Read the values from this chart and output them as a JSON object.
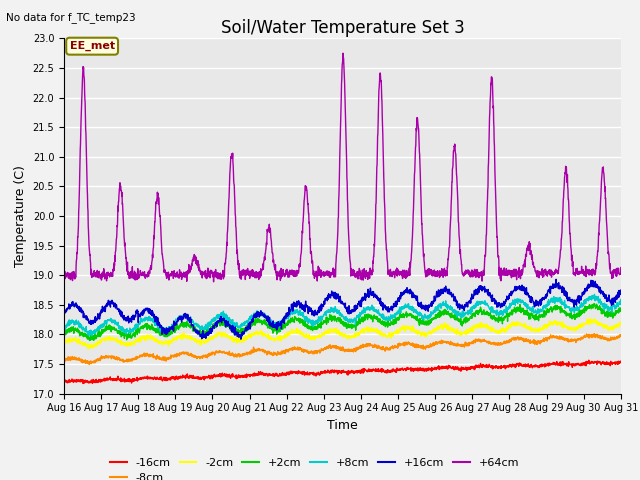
{
  "title": "Soil/Water Temperature Set 3",
  "ylabel": "Temperature (C)",
  "xlabel": "Time",
  "no_data_label": "No data for f_TC_temp23",
  "ee_met_label": "EE_met",
  "ylim": [
    17.0,
    23.0
  ],
  "yticks": [
    17.0,
    17.5,
    18.0,
    18.5,
    19.0,
    19.5,
    20.0,
    20.5,
    21.0,
    21.5,
    22.0,
    22.5,
    23.0
  ],
  "day_start": 16,
  "n_days": 15,
  "legend_entries": [
    "-16cm",
    "-8cm",
    "-2cm",
    "+2cm",
    "+8cm",
    "+16cm",
    "+64cm"
  ],
  "line_colors": [
    "#ff0000",
    "#ff8c00",
    "#ffff00",
    "#00cc00",
    "#00cccc",
    "#0000cc",
    "#aa00aa"
  ],
  "bg_color": "#e8e8e8",
  "grid_color": "#ffffff",
  "title_fontsize": 12,
  "label_fontsize": 9,
  "tick_fontsize": 7,
  "purple_peak_heights": [
    22.45,
    20.5,
    20.35,
    19.3,
    21.05,
    19.8,
    20.5,
    22.7,
    22.4,
    21.65,
    21.2,
    22.3,
    19.5,
    20.8,
    20.8
  ],
  "purple_night_base": 19.0,
  "purple_trend": 0.0
}
